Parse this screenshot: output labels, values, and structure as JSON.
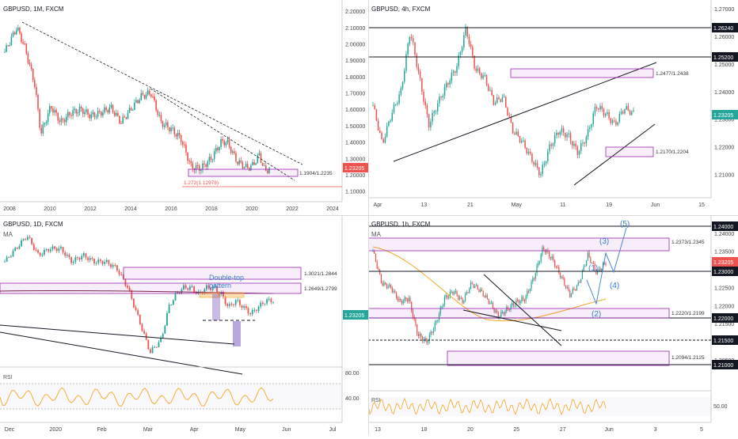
{
  "panels": [
    {
      "id": "monthly",
      "header": "GBPUSD, 1M, FXCM",
      "sub": "",
      "ylim": [
        1.05,
        2.22
      ],
      "y_ticks": [
        "2.20000",
        "2.10000",
        "2.00000",
        "1.90000",
        "1.80000",
        "1.70000",
        "1.60000",
        "1.50000",
        "1.40000",
        "1.30000",
        "1.20000",
        "1.10000"
      ],
      "x_labels": [
        "2008",
        "2010",
        "2012",
        "2014",
        "2016",
        "2018",
        "2020",
        "2022",
        "2024"
      ],
      "price_badge": "1.23205",
      "annotations": [
        "1.1904/1.2235",
        "1.272(1.12978)"
      ],
      "line_x": [
        2007.2,
        2007.8,
        2008.2,
        2008.7,
        2009.0,
        2009.5,
        2010.0,
        2010.5,
        2011.0,
        2011.5,
        2012.0,
        2012.5,
        2013.0,
        2013.5,
        2014.0,
        2014.5,
        2015.0,
        2015.5,
        2016.0,
        2016.5,
        2017.0,
        2017.5,
        2018.0,
        2018.3,
        2018.8,
        2019.3,
        2019.6,
        2019.9,
        2020.2,
        2020.4
      ],
      "line_y": [
        1.95,
        2.1,
        1.98,
        1.75,
        1.45,
        1.62,
        1.52,
        1.58,
        1.6,
        1.56,
        1.58,
        1.61,
        1.52,
        1.6,
        1.68,
        1.7,
        1.52,
        1.48,
        1.42,
        1.25,
        1.24,
        1.3,
        1.4,
        1.4,
        1.28,
        1.24,
        1.26,
        1.32,
        1.22,
        1.24
      ]
    },
    {
      "id": "h4",
      "header": "GBPUSD, 4h, FXCM",
      "sub": "",
      "ylim": [
        1.203,
        1.272
      ],
      "y_ticks": [
        "1.27000",
        "1.26000",
        "1.25000",
        "1.24000",
        "1.23000",
        "1.22000",
        "1.21000"
      ],
      "x_labels": [
        "Apr",
        "13",
        "21",
        "May",
        "11",
        "19",
        "Jun",
        "15"
      ],
      "price_badge": "1.23205",
      "level_badges": [
        "1.26240",
        "1.25200"
      ],
      "annotations": [
        "1.2477/1.2438",
        "1.2170/1.2204"
      ],
      "line_x": [
        0,
        4,
        8,
        12,
        16,
        20,
        24,
        28,
        32,
        36,
        40,
        44,
        48,
        52,
        56,
        60,
        64,
        68,
        72,
        76,
        80,
        84,
        88,
        92,
        96,
        100,
        104,
        108,
        112
      ],
      "line_y": [
        1.235,
        1.221,
        1.232,
        1.24,
        1.262,
        1.245,
        1.228,
        1.236,
        1.243,
        1.249,
        1.263,
        1.248,
        1.245,
        1.236,
        1.238,
        1.226,
        1.222,
        1.216,
        1.21,
        1.22,
        1.226,
        1.224,
        1.218,
        1.224,
        1.235,
        1.232,
        1.228,
        1.234,
        1.232
      ]
    },
    {
      "id": "daily",
      "header": "GBPUSD, 1D, FXCM",
      "sub": "MA",
      "ylim": [
        1.13,
        1.33
      ],
      "y_ticks": [],
      "x_labels": [
        "Dec",
        "2020",
        "Feb",
        "Mar",
        "Apr",
        "May",
        "Jun",
        "Jul"
      ],
      "price_badge": "1.23205",
      "annotations": [
        "1.3021/1.2844",
        "1.2649/1.2799",
        "Double-top",
        "pattern"
      ],
      "rsi_ticks": [
        "80.00",
        "40.00"
      ],
      "line_x": [
        0,
        6,
        12,
        18,
        24,
        30,
        36,
        42,
        48,
        54,
        60,
        66,
        72,
        78,
        84,
        88,
        92,
        96,
        100,
        104,
        108,
        112,
        116,
        120,
        124,
        128,
        132,
        136,
        140,
        144
      ],
      "line_y": [
        1.29,
        1.31,
        1.33,
        1.3,
        1.31,
        1.31,
        1.29,
        1.3,
        1.29,
        1.29,
        1.28,
        1.25,
        1.2,
        1.15,
        1.17,
        1.22,
        1.24,
        1.25,
        1.25,
        1.24,
        1.25,
        1.25,
        1.24,
        1.22,
        1.23,
        1.22,
        1.21,
        1.22,
        1.23,
        1.23
      ]
    },
    {
      "id": "hourly",
      "header": "GBPUSD, 1h, FXCM",
      "sub": "MA",
      "ylim": [
        1.203,
        1.2415
      ],
      "y_ticks": [
        "1.24000",
        "1.23500",
        "1.23000",
        "1.22500",
        "1.22000",
        "1.21500",
        "1.21000",
        "1.20500"
      ],
      "x_labels": [
        "13",
        "18",
        "20",
        "25",
        "27",
        "Jun",
        "3",
        "5"
      ],
      "price_badge": "1.23205",
      "level_badges": [
        "1.24000",
        "1.23000",
        "1.22000",
        "1.21500",
        "1.21000"
      ],
      "annotations": [
        "1.2373/1.2345",
        "1.2220/1.2199",
        "1.2094/1.2125"
      ],
      "waves": [
        "(1)",
        "(2)",
        "(3)",
        "(4)",
        "(5)"
      ],
      "rsi_ticks": [
        "50.00"
      ],
      "line_x": [
        0,
        4,
        8,
        12,
        16,
        20,
        24,
        28,
        32,
        36,
        40,
        44,
        48,
        52,
        56,
        60,
        64,
        68,
        72,
        76,
        80,
        84,
        88,
        92,
        96,
        100,
        104
      ],
      "line_y": [
        1.235,
        1.226,
        1.225,
        1.221,
        1.222,
        1.212,
        1.21,
        1.215,
        1.222,
        1.224,
        1.221,
        1.226,
        1.224,
        1.221,
        1.217,
        1.219,
        1.221,
        1.222,
        1.228,
        1.236,
        1.233,
        1.228,
        1.223,
        1.226,
        1.234,
        1.229,
        1.232
      ]
    }
  ],
  "chart_data": [
    {
      "type": "line",
      "title": "GBPUSD, 1M, FXCM",
      "xlabel": "",
      "ylabel": "",
      "x": [
        2008,
        2010,
        2012,
        2014,
        2016,
        2018,
        2020
      ],
      "y": [
        1.98,
        1.52,
        1.58,
        1.68,
        1.42,
        1.4,
        1.22
      ],
      "ylim": [
        1.1,
        2.2
      ]
    },
    {
      "type": "line",
      "title": "GBPUSD, 4h, FXCM",
      "xlabel": "",
      "ylabel": "",
      "x": [
        "Apr",
        "13",
        "21",
        "May",
        "11",
        "19"
      ],
      "y": [
        1.235,
        1.262,
        1.236,
        1.263,
        1.222,
        1.232
      ],
      "ylim": [
        1.21,
        1.27
      ]
    },
    {
      "type": "line",
      "title": "GBPUSD, 1D, FXCM",
      "xlabel": "",
      "ylabel": "",
      "x": [
        "Dec",
        "2020",
        "Feb",
        "Mar",
        "Apr",
        "May"
      ],
      "y": [
        1.31,
        1.31,
        1.3,
        1.16,
        1.24,
        1.23
      ],
      "ylim": [
        1.15,
        1.35
      ]
    },
    {
      "type": "line",
      "title": "GBPUSD, 1h, FXCM",
      "xlabel": "",
      "ylabel": "",
      "x": [
        "13",
        "18",
        "20",
        "25",
        "27"
      ],
      "y": [
        1.235,
        1.21,
        1.222,
        1.22,
        1.232
      ],
      "ylim": [
        1.205,
        1.24
      ]
    }
  ],
  "colors": {
    "up": "#26a69a",
    "down": "#ef5350",
    "ma_daily": "#7b1f4a",
    "ma_hourly": "#f5a623",
    "zone": "#9c27b0",
    "badge_red": "#ef5350",
    "badge_green": "#26a69a",
    "badge_black": "#131722",
    "rsi": "#f5a623",
    "wave": "#3a7bd5"
  }
}
